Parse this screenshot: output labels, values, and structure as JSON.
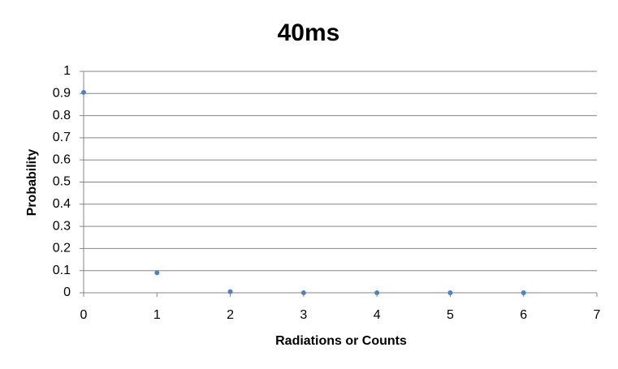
{
  "chart_data": {
    "type": "scatter",
    "title": "40ms",
    "x_label": "Radiations  or Counts",
    "y_label": "Probability",
    "series": [
      {
        "color": "#4f81bd",
        "x": [
          0,
          1,
          2,
          3,
          4,
          5,
          6
        ],
        "values": [
          0.905,
          0.09,
          0.005,
          0,
          0,
          0,
          0
        ]
      }
    ],
    "xlim": [
      0,
      7
    ],
    "xticks": [
      0,
      1,
      2,
      3,
      4,
      5,
      6,
      7
    ],
    "ylim": [
      0,
      1
    ],
    "yticks": [
      0,
      0.1,
      0.2,
      0.3,
      0.4,
      0.5,
      0.6,
      0.7,
      0.8,
      0.9,
      1
    ],
    "grid": true
  }
}
